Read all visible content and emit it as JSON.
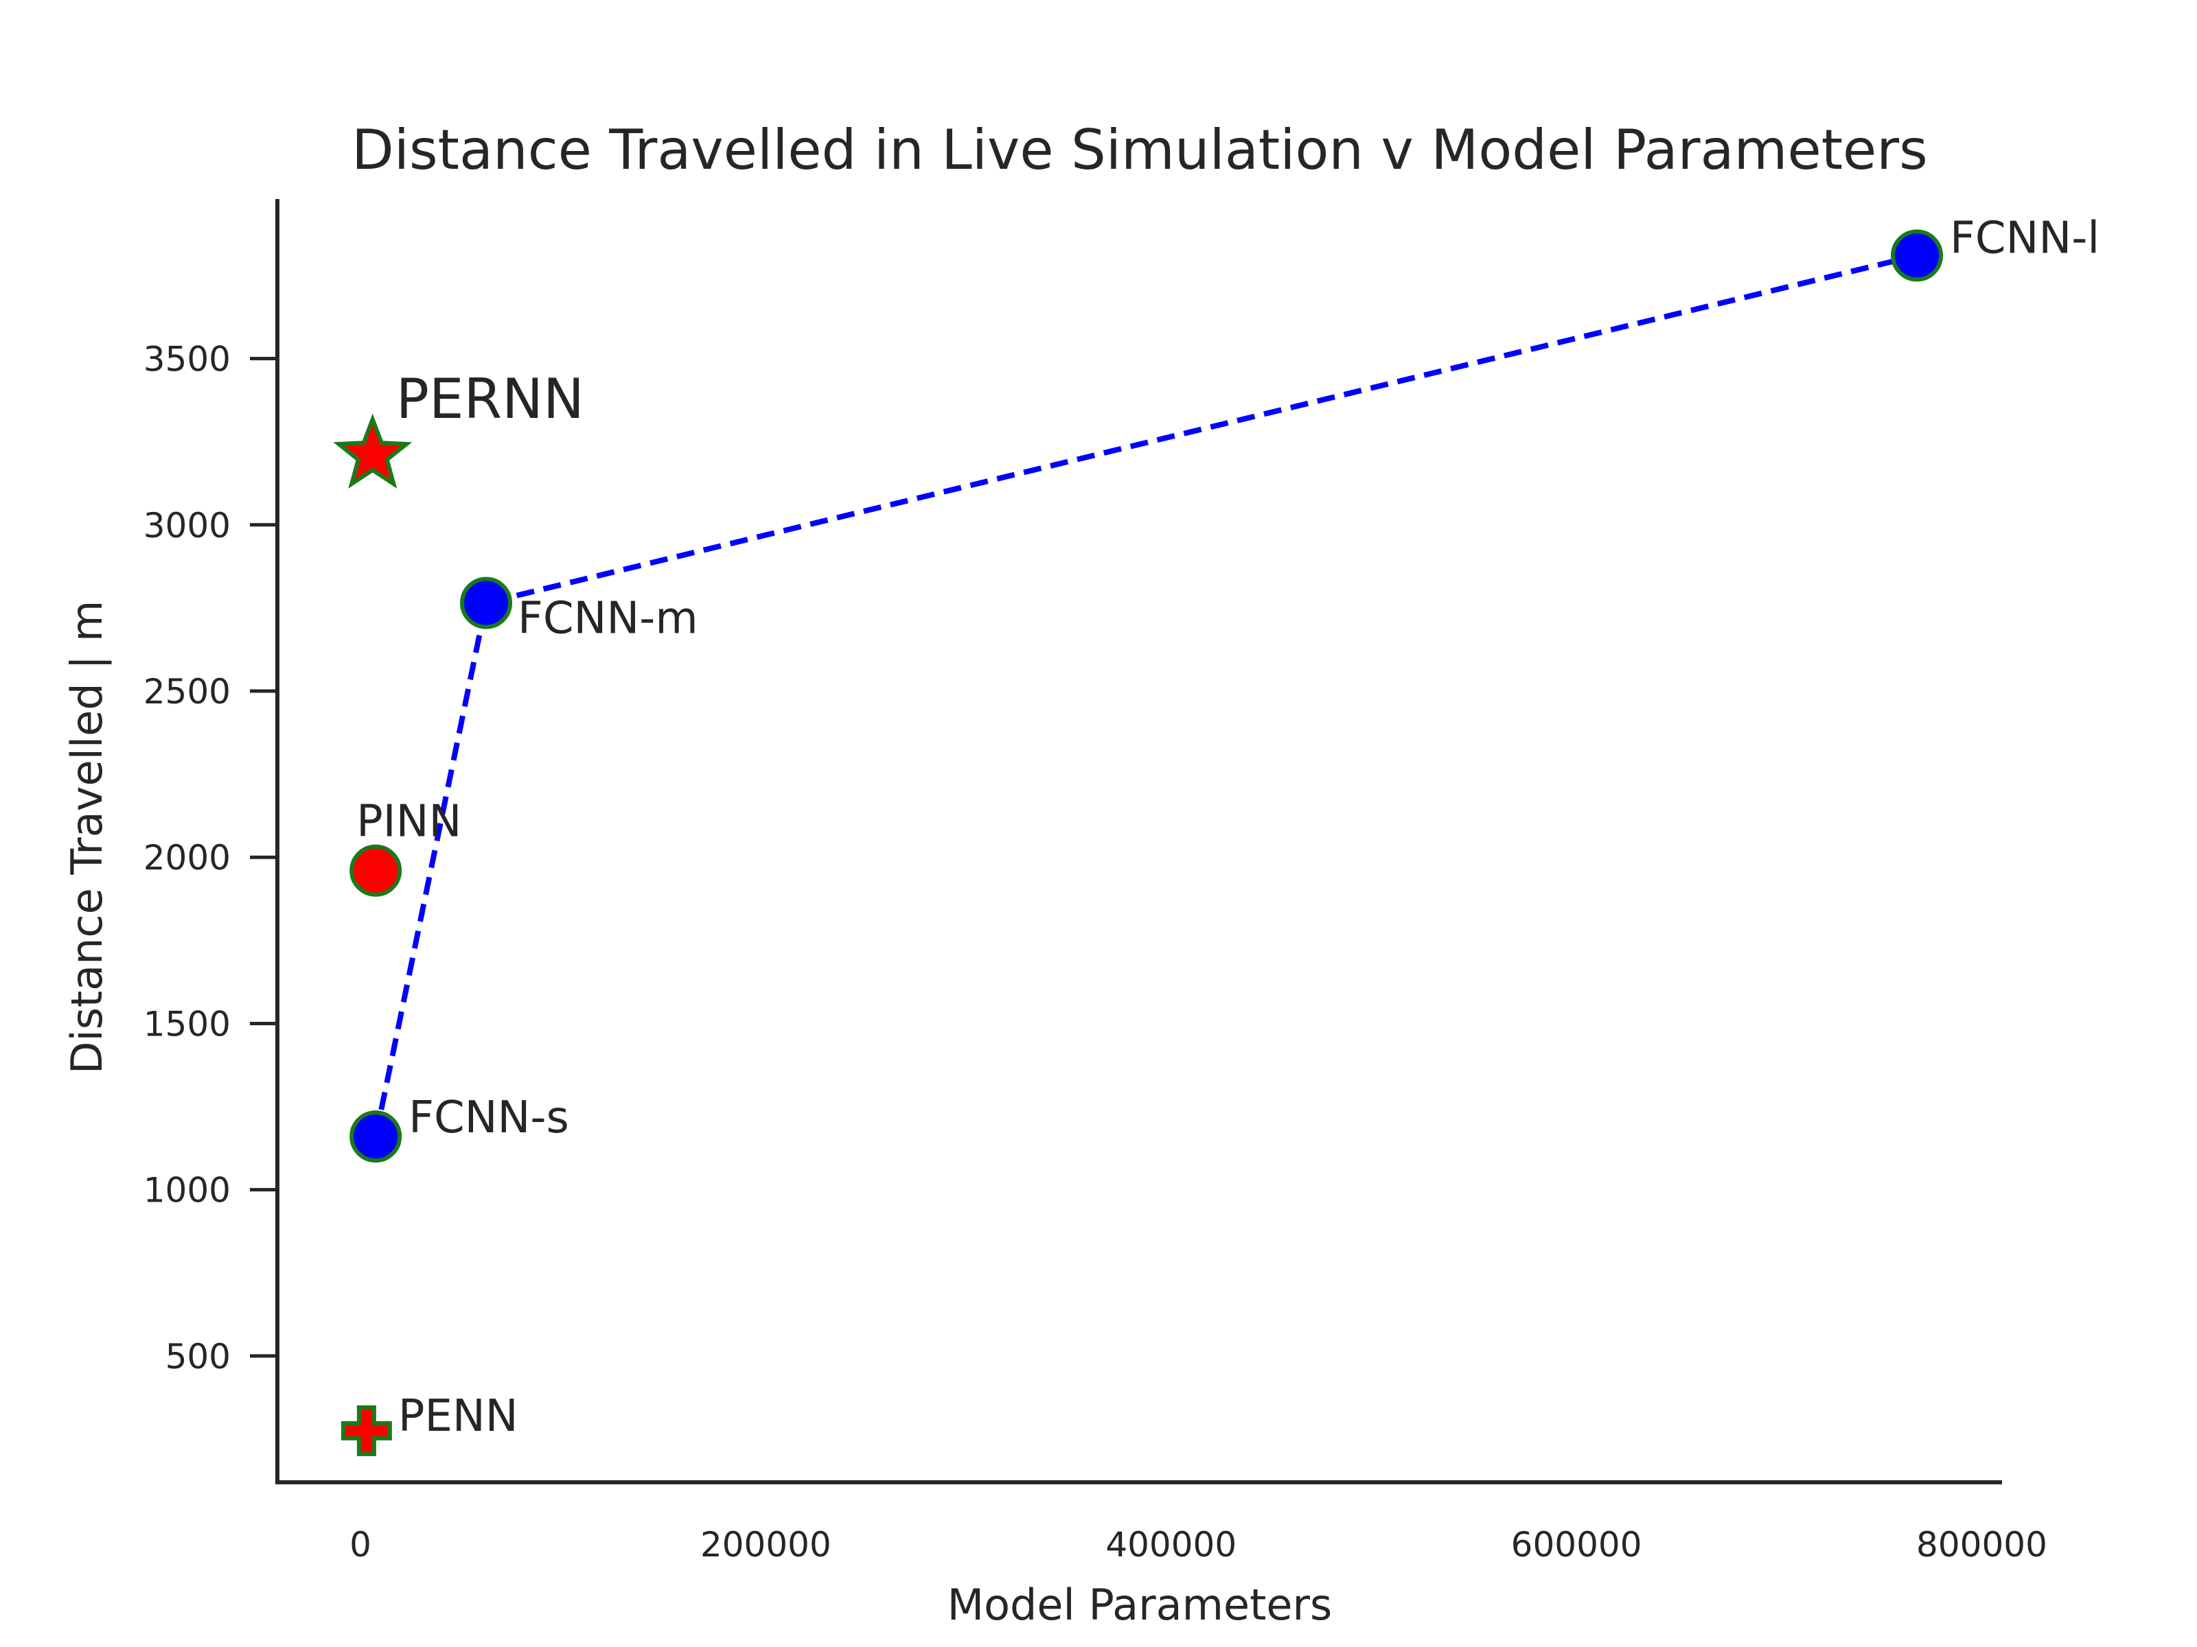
{
  "chart_data": {
    "type": "scatter",
    "title": "Distance Travelled in Live Simulation v Model Parameters",
    "xlabel": "Model Parameters",
    "ylabel": "Distance Travelled | m",
    "xlim": [
      -41000,
      810000
    ],
    "ylim": [
      120,
      3980
    ],
    "xticks": [
      0,
      200000,
      400000,
      600000,
      800000
    ],
    "yticks": [
      500,
      1000,
      1500,
      2000,
      2500,
      3000,
      3500
    ],
    "grid": false,
    "series": [
      {
        "name": "FCNN",
        "line_style": "dashed",
        "line_color": "#0000ff",
        "marker": "circle",
        "fill": "#0000ff",
        "edge": "#1a7a1a",
        "points": [
          {
            "label": "FCNN-s",
            "x": 7500,
            "y": 1160
          },
          {
            "label": "FCNN-m",
            "x": 62000,
            "y": 2765
          },
          {
            "label": "FCNN-l",
            "x": 768000,
            "y": 3810
          }
        ]
      },
      {
        "name": "PINN",
        "marker": "circle",
        "fill": "#ff0000",
        "edge": "#1a7a1a",
        "points": [
          {
            "label": "PINN",
            "x": 7500,
            "y": 1960
          }
        ]
      },
      {
        "name": "PERNN",
        "marker": "star",
        "fill": "#ff0000",
        "edge": "#1a7a1a",
        "points": [
          {
            "label": "PERNN",
            "x": 6000,
            "y": 3210
          }
        ]
      },
      {
        "name": "PENN",
        "marker": "plus",
        "fill": "#ff0000",
        "edge": "#1a7a1a",
        "points": [
          {
            "label": "PENN",
            "x": 3000,
            "y": 275
          }
        ]
      }
    ]
  }
}
